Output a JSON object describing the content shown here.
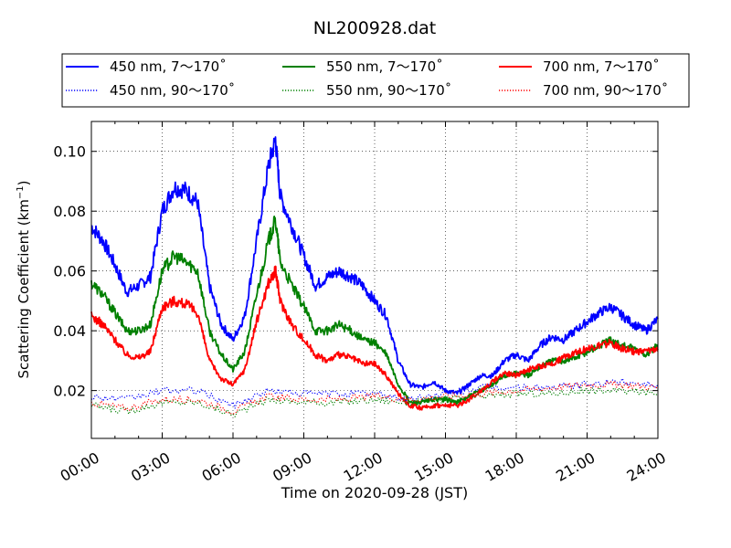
{
  "chart_data": {
    "type": "line",
    "title": "NL200928.dat",
    "xlabel": "Time on 2020-09-28 (JST)",
    "ylabel_main": "Scattering Coefficient (km",
    "ylabel_sup": "−1",
    "ylabel_close": ")",
    "xlim": [
      0,
      24
    ],
    "ylim": [
      0.004,
      0.11
    ],
    "x_ticks": [
      0,
      3,
      6,
      9,
      12,
      15,
      18,
      21,
      24
    ],
    "x_tick_labels": [
      "00:00",
      "03:00",
      "06:00",
      "09:00",
      "12:00",
      "15:00",
      "18:00",
      "21:00",
      "24:00"
    ],
    "y_ticks": [
      0.02,
      0.04,
      0.06,
      0.08,
      0.1
    ],
    "y_tick_labels": [
      "0.02",
      "0.04",
      "0.06",
      "0.08",
      "0.10"
    ],
    "grid": true,
    "legend_position": "top, above plot, 3 columns",
    "series": [
      {
        "name": "450 nm, 7～170˚",
        "color": "#0000ff",
        "style": "solid",
        "x": [
          0,
          0.5,
          1,
          1.5,
          2,
          2.5,
          3,
          3.5,
          4,
          4.5,
          5,
          5.5,
          6,
          6.5,
          7,
          7.5,
          7.8,
          8,
          8.5,
          9,
          9.5,
          10,
          10.5,
          11,
          11.5,
          12,
          12.5,
          13,
          13.5,
          14,
          14.5,
          15,
          15.5,
          16,
          16.5,
          17,
          17.5,
          18,
          18.5,
          19,
          19.5,
          20,
          20.5,
          21,
          21.5,
          22,
          22.5,
          23,
          23.5,
          24
        ],
        "y": [
          0.075,
          0.07,
          0.062,
          0.053,
          0.055,
          0.058,
          0.08,
          0.088,
          0.087,
          0.083,
          0.055,
          0.042,
          0.037,
          0.045,
          0.07,
          0.095,
          0.104,
          0.085,
          0.075,
          0.065,
          0.055,
          0.058,
          0.06,
          0.058,
          0.055,
          0.05,
          0.045,
          0.03,
          0.022,
          0.021,
          0.023,
          0.02,
          0.019,
          0.022,
          0.025,
          0.025,
          0.03,
          0.032,
          0.03,
          0.035,
          0.038,
          0.037,
          0.04,
          0.043,
          0.046,
          0.048,
          0.045,
          0.042,
          0.04,
          0.044
        ]
      },
      {
        "name": "550 nm, 7～170˚",
        "color": "#008000",
        "style": "solid",
        "x": [
          0,
          0.5,
          1,
          1.5,
          2,
          2.5,
          3,
          3.5,
          4,
          4.5,
          5,
          5.5,
          6,
          6.5,
          7,
          7.5,
          7.8,
          8,
          8.5,
          9,
          9.5,
          10,
          10.5,
          11,
          11.5,
          12,
          12.5,
          13,
          13.5,
          14,
          14.5,
          15,
          15.5,
          16,
          16.5,
          17,
          17.5,
          18,
          18.5,
          19,
          19.5,
          20,
          20.5,
          21,
          21.5,
          22,
          22.5,
          23,
          23.5,
          24
        ],
        "y": [
          0.056,
          0.052,
          0.046,
          0.04,
          0.04,
          0.042,
          0.06,
          0.065,
          0.063,
          0.06,
          0.04,
          0.032,
          0.027,
          0.033,
          0.052,
          0.07,
          0.077,
          0.063,
          0.055,
          0.048,
          0.04,
          0.04,
          0.042,
          0.04,
          0.037,
          0.036,
          0.032,
          0.022,
          0.016,
          0.016,
          0.017,
          0.017,
          0.016,
          0.018,
          0.02,
          0.022,
          0.025,
          0.026,
          0.025,
          0.028,
          0.03,
          0.03,
          0.031,
          0.033,
          0.035,
          0.037,
          0.035,
          0.034,
          0.032,
          0.035
        ]
      },
      {
        "name": "700 nm, 7～170˚",
        "color": "#ff0000",
        "style": "solid",
        "x": [
          0,
          0.5,
          1,
          1.5,
          2,
          2.5,
          3,
          3.5,
          4,
          4.5,
          5,
          5.5,
          6,
          6.5,
          7,
          7.5,
          7.8,
          8,
          8.5,
          9,
          9.5,
          10,
          10.5,
          11,
          11.5,
          12,
          12.5,
          13,
          13.5,
          14,
          14.5,
          15,
          15.5,
          16,
          16.5,
          17,
          17.5,
          18,
          18.5,
          19,
          19.5,
          20,
          20.5,
          21,
          21.5,
          22,
          22.5,
          23,
          23.5,
          24
        ],
        "y": [
          0.045,
          0.042,
          0.037,
          0.032,
          0.031,
          0.033,
          0.048,
          0.05,
          0.049,
          0.046,
          0.03,
          0.024,
          0.022,
          0.027,
          0.043,
          0.056,
          0.06,
          0.05,
          0.042,
          0.037,
          0.032,
          0.03,
          0.032,
          0.031,
          0.029,
          0.029,
          0.025,
          0.019,
          0.015,
          0.014,
          0.015,
          0.015,
          0.015,
          0.017,
          0.02,
          0.023,
          0.026,
          0.025,
          0.027,
          0.028,
          0.029,
          0.031,
          0.033,
          0.034,
          0.035,
          0.036,
          0.034,
          0.033,
          0.033,
          0.034
        ]
      },
      {
        "name": "450 nm, 90～170˚",
        "color": "#0000ff",
        "style": "dotted",
        "x": [
          0,
          1.5,
          3,
          4.5,
          6,
          7.5,
          9,
          10.5,
          12,
          13.5,
          15,
          16.5,
          18,
          19.5,
          21,
          22.5,
          24
        ],
        "y": [
          0.018,
          0.017,
          0.02,
          0.02,
          0.015,
          0.02,
          0.019,
          0.019,
          0.019,
          0.017,
          0.019,
          0.021,
          0.021,
          0.021,
          0.022,
          0.023,
          0.022
        ]
      },
      {
        "name": "550 nm, 90～170˚",
        "color": "#008000",
        "style": "dotted",
        "x": [
          0,
          1.5,
          3,
          4.5,
          6,
          7.5,
          9,
          10.5,
          12,
          13.5,
          15,
          16.5,
          18,
          19.5,
          21,
          22.5,
          24
        ],
        "y": [
          0.015,
          0.013,
          0.016,
          0.016,
          0.012,
          0.017,
          0.016,
          0.016,
          0.017,
          0.016,
          0.017,
          0.018,
          0.019,
          0.019,
          0.02,
          0.02,
          0.019
        ]
      },
      {
        "name": "700 nm, 90～170˚",
        "color": "#ff0000",
        "style": "dotted",
        "x": [
          0,
          1.5,
          3,
          4.5,
          6,
          7.5,
          9,
          10.5,
          12,
          13.5,
          15,
          16.5,
          18,
          19.5,
          21,
          22.5,
          24
        ],
        "y": [
          0.016,
          0.014,
          0.017,
          0.017,
          0.013,
          0.018,
          0.017,
          0.017,
          0.018,
          0.017,
          0.018,
          0.019,
          0.02,
          0.021,
          0.022,
          0.022,
          0.021
        ]
      }
    ]
  }
}
